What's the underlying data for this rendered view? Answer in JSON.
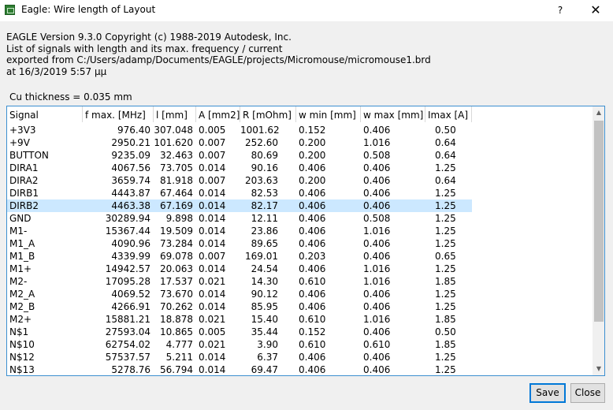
{
  "window": {
    "title": "Eagle: Wire length of Layout",
    "help_glyph": "?",
    "close_glyph": "✕"
  },
  "info": {
    "line1": "EAGLE Version 9.3.0 Copyright (c) 1988-2019 Autodesk, Inc.",
    "line2": "List of signals with length and its max. frequency / current",
    "line3": "exported from C:/Users/adamp/Documents/EAGLE/projects/Micromouse/micromouse1.brd",
    "line4": "at 16/3/2019 5:57 μμ"
  },
  "cu_thickness": "Cu thickness = 0.035 mm",
  "table": {
    "columns": [
      "Signal",
      "f max. [MHz]",
      "l [mm]",
      "A [mm2]",
      "R [mOhm]",
      "w min [mm]",
      "w max [mm]",
      "Imax [A]"
    ],
    "rows": [
      [
        "+3V3",
        "976.40",
        "307.048",
        "0.005",
        "1001.62",
        "0.152",
        "0.406",
        "0.50"
      ],
      [
        "+9V",
        "2950.21",
        "101.620",
        "0.007",
        "252.60",
        "0.200",
        "1.016",
        "0.64"
      ],
      [
        "BUTTON",
        "9235.09",
        "32.463",
        "0.007",
        "80.69",
        "0.200",
        "0.508",
        "0.64"
      ],
      [
        "DIRA1",
        "4067.56",
        "73.705",
        "0.014",
        "90.16",
        "0.406",
        "0.406",
        "1.25"
      ],
      [
        "DIRA2",
        "3659.74",
        "81.918",
        "0.007",
        "203.63",
        "0.200",
        "0.406",
        "0.64"
      ],
      [
        "DIRB1",
        "4443.87",
        "67.464",
        "0.014",
        "82.53",
        "0.406",
        "0.406",
        "1.25"
      ],
      [
        "DIRB2",
        "4463.38",
        "67.169",
        "0.014",
        "82.17",
        "0.406",
        "0.406",
        "1.25"
      ],
      [
        "GND",
        "30289.94",
        "9.898",
        "0.014",
        "12.11",
        "0.406",
        "0.508",
        "1.25"
      ],
      [
        "M1-",
        "15367.44",
        "19.509",
        "0.014",
        "23.86",
        "0.406",
        "1.016",
        "1.25"
      ],
      [
        "M1_A",
        "4090.96",
        "73.284",
        "0.014",
        "89.65",
        "0.406",
        "0.406",
        "1.25"
      ],
      [
        "M1_B",
        "4339.99",
        "69.078",
        "0.007",
        "169.01",
        "0.203",
        "0.406",
        "0.65"
      ],
      [
        "M1+",
        "14942.57",
        "20.063",
        "0.014",
        "24.54",
        "0.406",
        "1.016",
        "1.25"
      ],
      [
        "M2-",
        "17095.28",
        "17.537",
        "0.021",
        "14.30",
        "0.610",
        "1.016",
        "1.85"
      ],
      [
        "M2_A",
        "4069.52",
        "73.670",
        "0.014",
        "90.12",
        "0.406",
        "0.406",
        "1.25"
      ],
      [
        "M2_B",
        "4266.91",
        "70.262",
        "0.014",
        "85.95",
        "0.406",
        "0.406",
        "1.25"
      ],
      [
        "M2+",
        "15881.21",
        "18.878",
        "0.021",
        "15.40",
        "0.610",
        "1.016",
        "1.85"
      ],
      [
        "N$1",
        "27593.04",
        "10.865",
        "0.005",
        "35.44",
        "0.152",
        "0.406",
        "0.50"
      ],
      [
        "N$10",
        "62754.02",
        "4.777",
        "0.021",
        "3.90",
        "0.610",
        "0.610",
        "1.85"
      ],
      [
        "N$12",
        "57537.57",
        "5.211",
        "0.014",
        "6.37",
        "0.406",
        "0.406",
        "1.25"
      ],
      [
        "N$13",
        "5278.76",
        "56.794",
        "0.014",
        "69.47",
        "0.406",
        "0.406",
        "1.25"
      ]
    ],
    "selected_row_index": 6
  },
  "buttons": {
    "save": "Save",
    "close": "Close"
  },
  "colors": {
    "selection": "#cce8ff",
    "focus_border": "#0078d7"
  }
}
